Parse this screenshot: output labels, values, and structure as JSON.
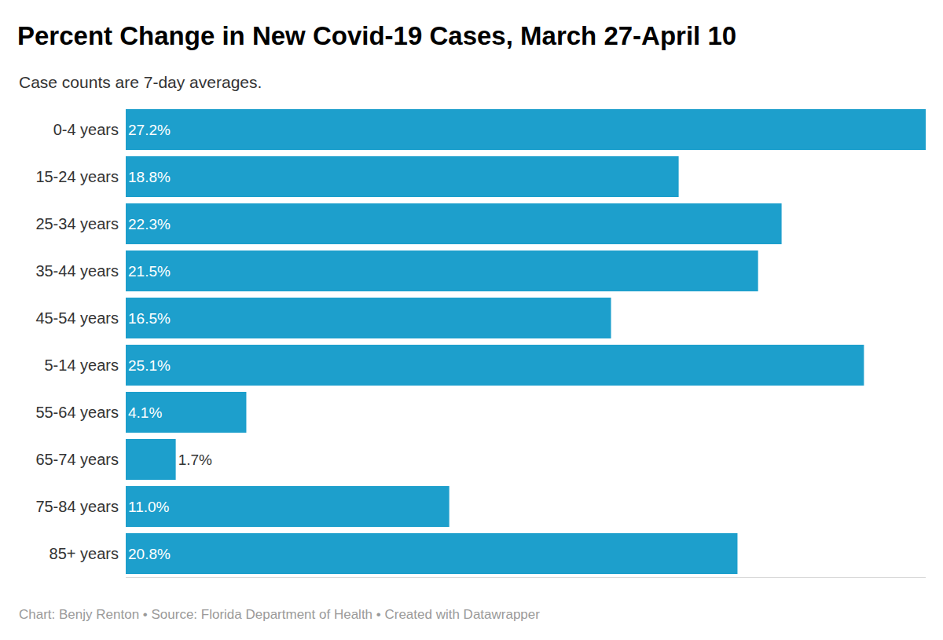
{
  "chart_data": {
    "type": "bar",
    "orientation": "horizontal",
    "title": "Percent Change in New Covid-19 Cases, March 27-April 10",
    "subtitle": "Case counts are 7-day averages.",
    "source": "Chart: Benjy Renton • Source: Florida Department of Health • Created with Datawrapper",
    "categories": [
      "0-4 years",
      "15-24 years",
      "25-34 years",
      "35-44 years",
      "45-54 years",
      "5-14 years",
      "55-64 years",
      "65-74 years",
      "75-84 years",
      "85+ years"
    ],
    "values": [
      27.2,
      18.8,
      22.3,
      21.5,
      16.5,
      25.1,
      4.1,
      1.7,
      11.0,
      20.8
    ],
    "value_labels": [
      "27.2%",
      "18.8%",
      "22.3%",
      "21.5%",
      "16.5%",
      "25.1%",
      "4.1%",
      "1.7%",
      "11.0%",
      "20.8%"
    ],
    "data_labels": true,
    "color": "#1d9fcc",
    "xlim": [
      0,
      27.2
    ],
    "grid": false,
    "tick_labels": "y"
  }
}
